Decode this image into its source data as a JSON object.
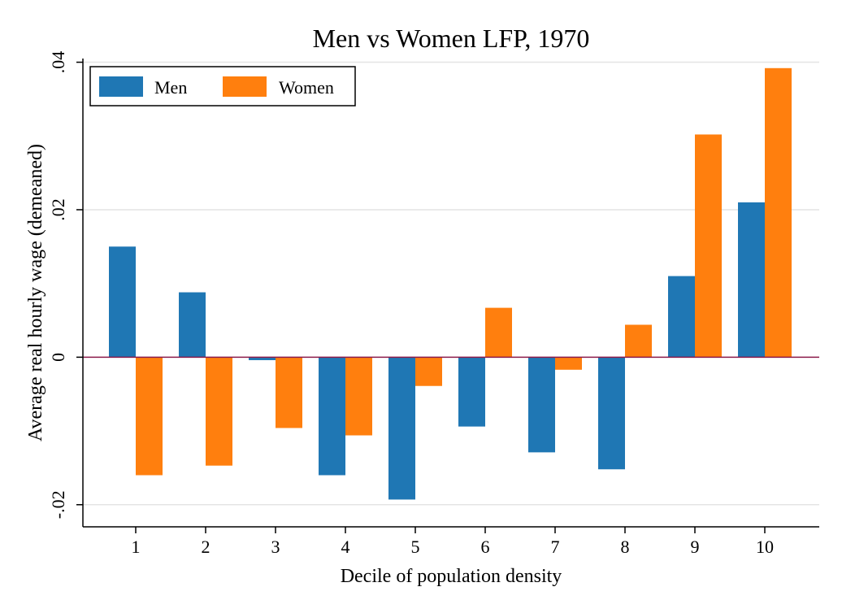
{
  "chart_data": {
    "type": "bar",
    "title": "Men vs Women LFP, 1970",
    "xlabel": "Decile of population density",
    "ylabel": "Average real hourly wage (demeaned)",
    "categories": [
      "1",
      "2",
      "3",
      "4",
      "5",
      "6",
      "7",
      "8",
      "9",
      "10"
    ],
    "series": [
      {
        "name": "Men",
        "color": "#1f77b4",
        "values": [
          0.015,
          0.0088,
          -0.0004,
          -0.016,
          -0.0193,
          -0.0094,
          -0.0129,
          -0.0152,
          0.011,
          0.021
        ]
      },
      {
        "name": "Women",
        "color": "#ff7f0e",
        "values": [
          -0.016,
          -0.0147,
          -0.0096,
          -0.0106,
          -0.0039,
          0.0067,
          -0.0017,
          0.0044,
          0.0302,
          0.0392
        ]
      }
    ],
    "ylim": [
      -0.023,
      0.0405
    ],
    "yticks": [
      {
        "value": -0.02,
        "label": "-.02"
      },
      {
        "value": 0,
        "label": "0"
      },
      {
        "value": 0.02,
        "label": ".02"
      },
      {
        "value": 0.04,
        "label": ".04"
      }
    ],
    "grid": true,
    "legend_position": "top-left",
    "zero_line_color": "#8b1a4a"
  }
}
